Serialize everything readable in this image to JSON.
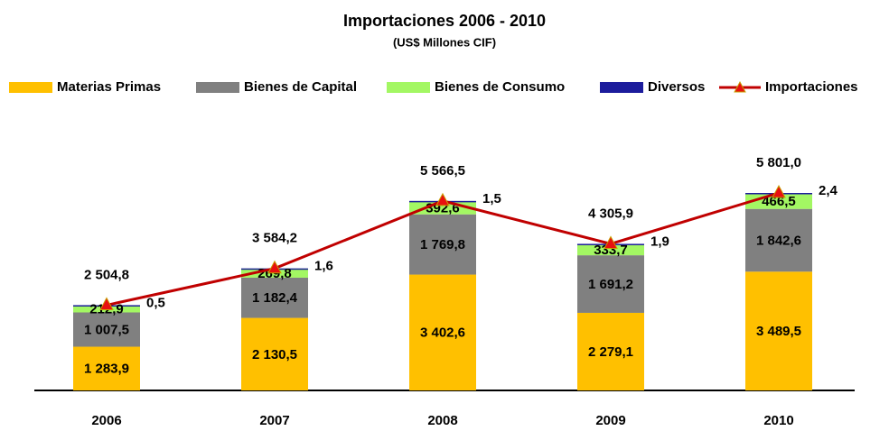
{
  "chart_data": {
    "type": "bar",
    "stacked": true,
    "title": "Importaciones 2006 - 2010",
    "subtitle": "(US$ Millones CIF)",
    "categories": [
      "2006",
      "2007",
      "2008",
      "2009",
      "2010"
    ],
    "series": [
      {
        "name": "Materias Primas",
        "color": "#ffc000",
        "values": [
          1283.9,
          2130.5,
          3402.6,
          2279.1,
          3489.5
        ],
        "value_labels": [
          "1 283,9",
          "2 130,5",
          "3 402,6",
          "2 279,1",
          "3 489,5"
        ]
      },
      {
        "name": "Bienes de Capital",
        "color": "#808080",
        "values": [
          1007.5,
          1182.4,
          1769.8,
          1691.2,
          1842.6
        ],
        "value_labels": [
          "1 007,5",
          "1 182,4",
          "1 769,8",
          "1 691,2",
          "1 842,6"
        ]
      },
      {
        "name": "Bienes de Consumo",
        "color": "#a3f763",
        "values": [
          212.9,
          269.8,
          392.6,
          333.7,
          466.5
        ],
        "value_labels": [
          "212,9",
          "269,8",
          "392,6",
          "333,7",
          "466,5"
        ]
      },
      {
        "name": "Diversos",
        "color": "#1c1c9c",
        "values": [
          0.5,
          1.6,
          1.5,
          1.9,
          2.4
        ],
        "value_labels": [
          "0,5",
          "1,6",
          "1,5",
          "1,9",
          "2,4"
        ]
      },
      {
        "name": "Importaciones",
        "type": "line",
        "color": "#c00000",
        "marker_color": "#e81010",
        "values": [
          2504.8,
          3584.2,
          5566.5,
          4305.9,
          5801.0
        ],
        "value_labels": [
          "2 504,8",
          "3 584,2",
          "5 566,5",
          "4 305,9",
          "5 801,0"
        ]
      }
    ],
    "legend": "top"
  }
}
